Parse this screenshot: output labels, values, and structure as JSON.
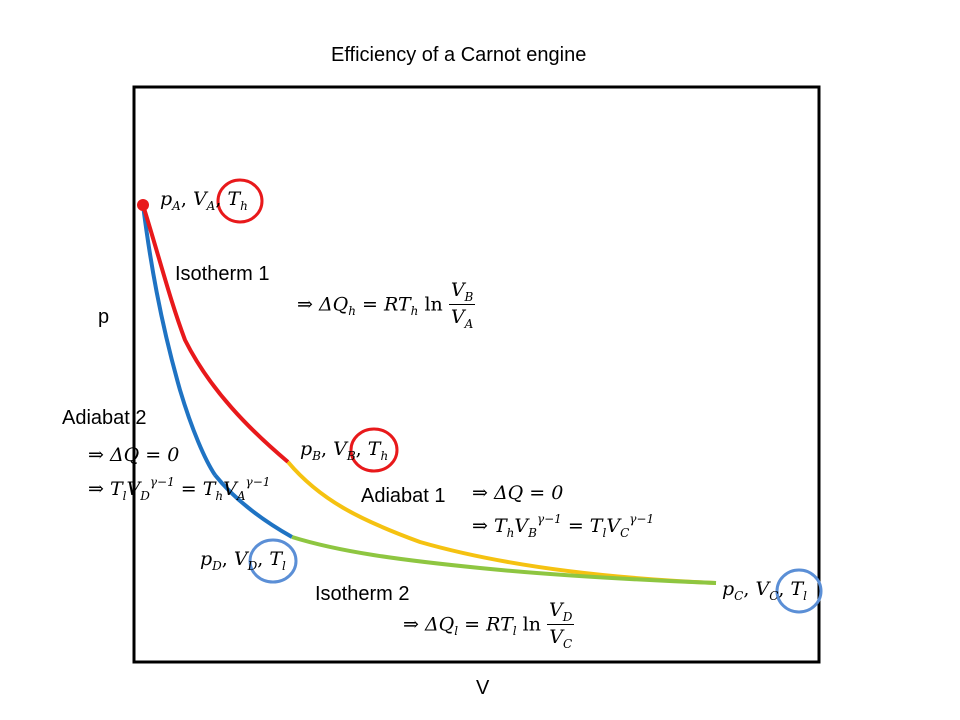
{
  "title": "Efficiency of a Carnot engine",
  "axis": {
    "x_label": "V",
    "y_label": "p"
  },
  "process_labels": {
    "isotherm1": "Isotherm 1",
    "adiabat1": "Adiabat 1",
    "isotherm2": "Isotherm 2",
    "adiabat2": "Adiabat 2"
  },
  "states": {
    "A": {
      "p": "p",
      "ps": "A",
      "V": "V",
      "vs": "A",
      "T": "T",
      "ts": "h"
    },
    "B": {
      "p": "p",
      "ps": "B",
      "V": "V",
      "vs": "B",
      "T": "T",
      "ts": "h"
    },
    "C": {
      "p": "p",
      "ps": "C",
      "V": "V",
      "vs": "C",
      "T": "T",
      "ts": "l"
    },
    "D": {
      "p": "p",
      "ps": "D",
      "V": "V",
      "vs": "D",
      "T": "T",
      "ts": "l"
    }
  },
  "equations": {
    "iso1_lhs": "⇒ ΔQ",
    "iso1_lhs_sub": "h",
    "iso1_mid": " = RT",
    "iso1_mid_sub": "h",
    "iso1_ln": "ln",
    "iso1_num": "V",
    "iso1_num_sub": "B",
    "iso1_den": "V",
    "iso1_den_sub": "A",
    "iso2_lhs": "⇒ ΔQ",
    "iso2_lhs_sub": "l",
    "iso2_mid": " = RT",
    "iso2_mid_sub": "l",
    "iso2_ln": "ln",
    "iso2_num": "V",
    "iso2_num_sub": "D",
    "iso2_den": "V",
    "iso2_den_sub": "C",
    "adia_dq": "⇒ ΔQ = 0",
    "adia1_a": "⇒ T",
    "adia1_a_sub": "h",
    "adia1_b": "V",
    "adia1_b_sub": "B",
    "adia1_exp": "γ−1",
    "adia1_eq": " = T",
    "adia1_c_sub": "l",
    "adia1_d": "V",
    "adia1_d_sub": "C",
    "adia2_a": "⇒ T",
    "adia2_a_sub": "l",
    "adia2_b": "V",
    "adia2_b_sub": "D",
    "adia2_exp": "γ−1",
    "adia2_eq": " = T",
    "adia2_c_sub": "h",
    "adia2_d": "V",
    "adia2_d_sub": "A"
  },
  "colors": {
    "isotherm1": "#e8191b",
    "adiabat1": "#f5c211",
    "isotherm2": "#8ec641",
    "adiabat2": "#1f73c3",
    "point_A": "#e8191b",
    "highlight_hot": "#e8191b",
    "highlight_cold": "#5b8fd6",
    "frame": "#000000"
  }
}
